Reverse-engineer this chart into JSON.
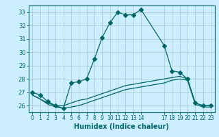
{
  "xlabel": "Humidex (Indice chaleur)",
  "background_color": "#cceeff",
  "grid_color": "#aacccc",
  "line_color": "#006666",
  "x_ticks": [
    0,
    1,
    2,
    3,
    4,
    5,
    6,
    7,
    8,
    9,
    10,
    11,
    12,
    13,
    14,
    17,
    18,
    19,
    20,
    21,
    22,
    23
  ],
  "ylim": [
    25.5,
    33.5
  ],
  "xlim": [
    -0.5,
    23.5
  ],
  "yticks": [
    26,
    27,
    28,
    29,
    30,
    31,
    32,
    33
  ],
  "series": [
    {
      "x": [
        0,
        1,
        2,
        3,
        4,
        5,
        6,
        7,
        8,
        9,
        10,
        11,
        12,
        13,
        14,
        17,
        18,
        19,
        20,
        21,
        22,
        23
      ],
      "y": [
        27.0,
        26.8,
        26.3,
        26.0,
        25.8,
        27.7,
        27.8,
        28.0,
        29.5,
        31.1,
        32.2,
        33.0,
        32.8,
        32.8,
        33.2,
        30.5,
        28.6,
        28.5,
        28.0,
        26.2,
        26.0,
        26.0
      ],
      "marker": "D",
      "markersize": 3
    },
    {
      "x": [
        0,
        1,
        2,
        3,
        4,
        5,
        6,
        7,
        8,
        9,
        10,
        11,
        12,
        13,
        14,
        17,
        18,
        19,
        20,
        21,
        22,
        23
      ],
      "y": [
        26.8,
        26.5,
        26.2,
        26.0,
        26.0,
        26.2,
        26.4,
        26.5,
        26.7,
        26.9,
        27.1,
        27.3,
        27.5,
        27.6,
        27.7,
        28.0,
        28.1,
        28.2,
        28.0,
        26.2,
        26.0,
        26.0
      ],
      "marker": null,
      "markersize": 0
    },
    {
      "x": [
        0,
        1,
        2,
        3,
        4,
        5,
        6,
        7,
        8,
        9,
        10,
        11,
        12,
        13,
        14,
        17,
        18,
        19,
        20,
        21,
        22,
        23
      ],
      "y": [
        26.8,
        26.5,
        26.1,
        25.9,
        25.8,
        25.9,
        26.0,
        26.2,
        26.4,
        26.6,
        26.8,
        27.0,
        27.2,
        27.3,
        27.4,
        27.7,
        27.9,
        28.0,
        27.9,
        26.1,
        25.9,
        25.9
      ],
      "marker": null,
      "markersize": 0
    }
  ]
}
